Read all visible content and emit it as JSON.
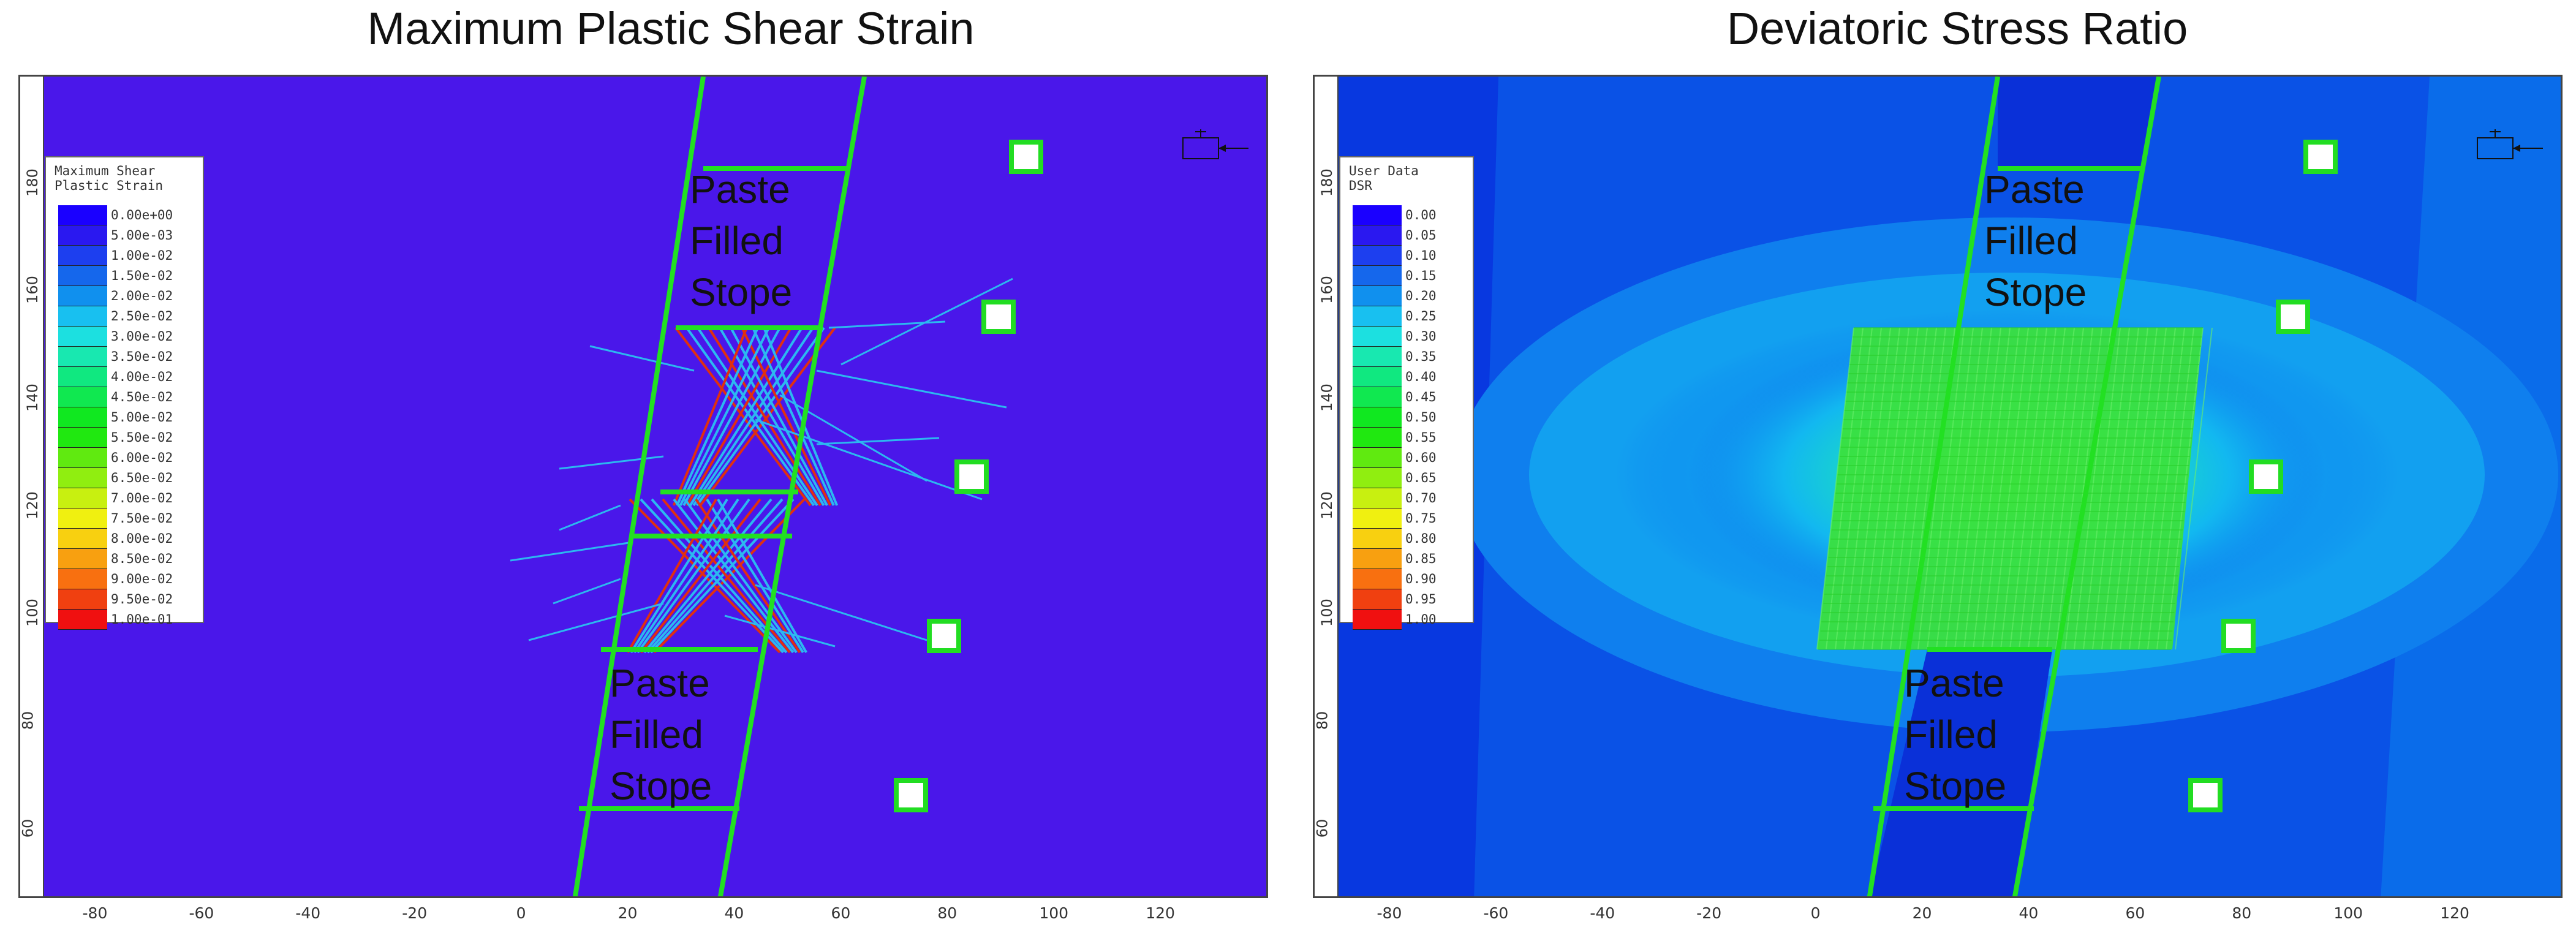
{
  "panels": [
    {
      "title": "Maximum Plastic Shear Strain",
      "legend_title": "Maximum Shear\nPlastic Strain",
      "legend_values": [
        "0.00e+00",
        "5.00e-03",
        "1.00e-02",
        "1.50e-02",
        "2.00e-02",
        "2.50e-02",
        "3.00e-02",
        "3.50e-02",
        "4.00e-02",
        "4.50e-02",
        "5.00e-02",
        "5.50e-02",
        "6.00e-02",
        "6.50e-02",
        "7.00e-02",
        "7.50e-02",
        "8.00e-02",
        "8.50e-02",
        "9.00e-02",
        "9.50e-02",
        "1.00e-01"
      ],
      "stope_upper": "Paste\nFilled\nStope",
      "stope_lower": "Paste\nFilled\nStope",
      "background_color": "#4a17ea"
    },
    {
      "title": "Deviatoric Stress Ratio",
      "legend_title": "User Data\nDSR",
      "legend_values": [
        "0.00",
        "0.05",
        "0.10",
        "0.15",
        "0.20",
        "0.25",
        "0.30",
        "0.35",
        "0.40",
        "0.45",
        "0.50",
        "0.55",
        "0.60",
        "0.65",
        "0.70",
        "0.75",
        "0.80",
        "0.85",
        "0.90",
        "0.95",
        "1.00"
      ],
      "stope_upper": "Paste\nFilled\nStope",
      "stope_lower": "Paste\nFilled\nStope",
      "background_color": "#0a5ae8"
    }
  ],
  "x_ticks": [
    "-80",
    "-60",
    "-40",
    "-20",
    "0",
    "20",
    "40",
    "60",
    "80",
    "100",
    "120"
  ],
  "y_ticks": [
    "60",
    "80",
    "100",
    "120",
    "140",
    "160",
    "180"
  ],
  "legend_colors": [
    "#1a00ff",
    "#2a18f0",
    "#1d3fef",
    "#1567ec",
    "#1090ee",
    "#18c0f0",
    "#1ce0e0",
    "#18e8b0",
    "#10e880",
    "#10e850",
    "#10e820",
    "#20e810",
    "#60ea10",
    "#90ee10",
    "#c8f010",
    "#f0f010",
    "#f8d010",
    "#f8a010",
    "#f87010",
    "#f04010",
    "#f01010"
  ],
  "colors": {
    "outline": "#22e022",
    "crack_blue": "#2cb8f0",
    "crack_red": "#e03010"
  }
}
